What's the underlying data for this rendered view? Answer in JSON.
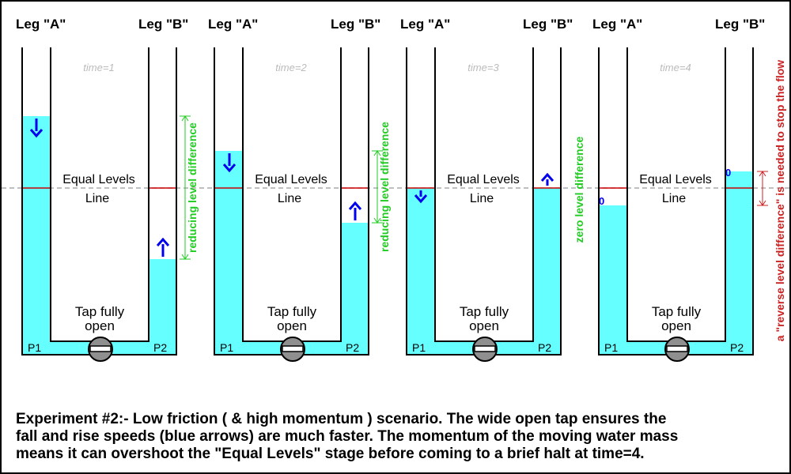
{
  "panels": [
    {
      "leg_a": "Leg \"A\"",
      "leg_b": "Leg \"B\"",
      "time": "time=1",
      "equal1": "Equal Levels",
      "equal2": "Line",
      "tap1": "Tap fully",
      "tap2": "open",
      "p1": "P1",
      "p2": "P2",
      "side_label": "reducing level difference",
      "level_a": 145,
      "level_b": 326,
      "arrow_a": "down",
      "arrow_b": "up",
      "arrow_a_size": "big",
      "arrow_b_size": "big",
      "zero_a": "",
      "zero_b": ""
    },
    {
      "leg_a": "Leg \"A\"",
      "leg_b": "Leg \"B\"",
      "time": "time=2",
      "equal1": "Equal Levels",
      "equal2": "Line",
      "tap1": "Tap fully",
      "tap2": "open",
      "p1": "P1",
      "p2": "P2",
      "side_label": "reducing level difference",
      "level_a": 189,
      "level_b": 280,
      "arrow_a": "down",
      "arrow_b": "up",
      "arrow_a_size": "big",
      "arrow_b_size": "big",
      "zero_a": "",
      "zero_b": ""
    },
    {
      "leg_a": "Leg \"A\"",
      "leg_b": "Leg \"B\"",
      "time": "time=3",
      "equal1": "Equal Levels",
      "equal2": "Line",
      "tap1": "Tap fully",
      "tap2": "open",
      "p1": "P1",
      "p2": "P2",
      "side_label": "zero level difference",
      "level_a": 236,
      "level_b": 236,
      "arrow_a": "down",
      "arrow_b": "up",
      "arrow_a_size": "small",
      "arrow_b_size": "small",
      "zero_a": "",
      "zero_b": ""
    },
    {
      "leg_a": "Leg \"A\"",
      "leg_b": "Leg \"B\"",
      "time": "time=4",
      "equal1": "Equal Levels",
      "equal2": "Line",
      "tap1": "Tap fully",
      "tap2": "open",
      "p1": "P1",
      "p2": "P2",
      "side_label": "a \"reverse level difference\" is needed to stop the flow",
      "level_a": 258,
      "level_b": 215,
      "arrow_a": "none",
      "arrow_b": "none",
      "arrow_a_size": "",
      "arrow_b_size": "",
      "zero_a": "0",
      "zero_b": "0"
    }
  ],
  "caption": {
    "line1": "Experiment #2:-  Low friction ( & high momentum ) scenario. The wide open tap ensures the",
    "line2": "fall and rise speeds (blue arrows) are much faster. The momentum of the moving water mass",
    "line3": "means it can overshoot the \"Equal Levels\" stage before coming to a brief halt at time=4."
  },
  "colors": {
    "water": "#66ffff",
    "arrow": "#0000ee",
    "green_label": "#22cc22",
    "red_label": "#cc2222",
    "equal_line": "#cc0000",
    "dashed": "#aaaaaa",
    "time_text": "#bbbbbb",
    "tap": "#8f8f8f"
  }
}
